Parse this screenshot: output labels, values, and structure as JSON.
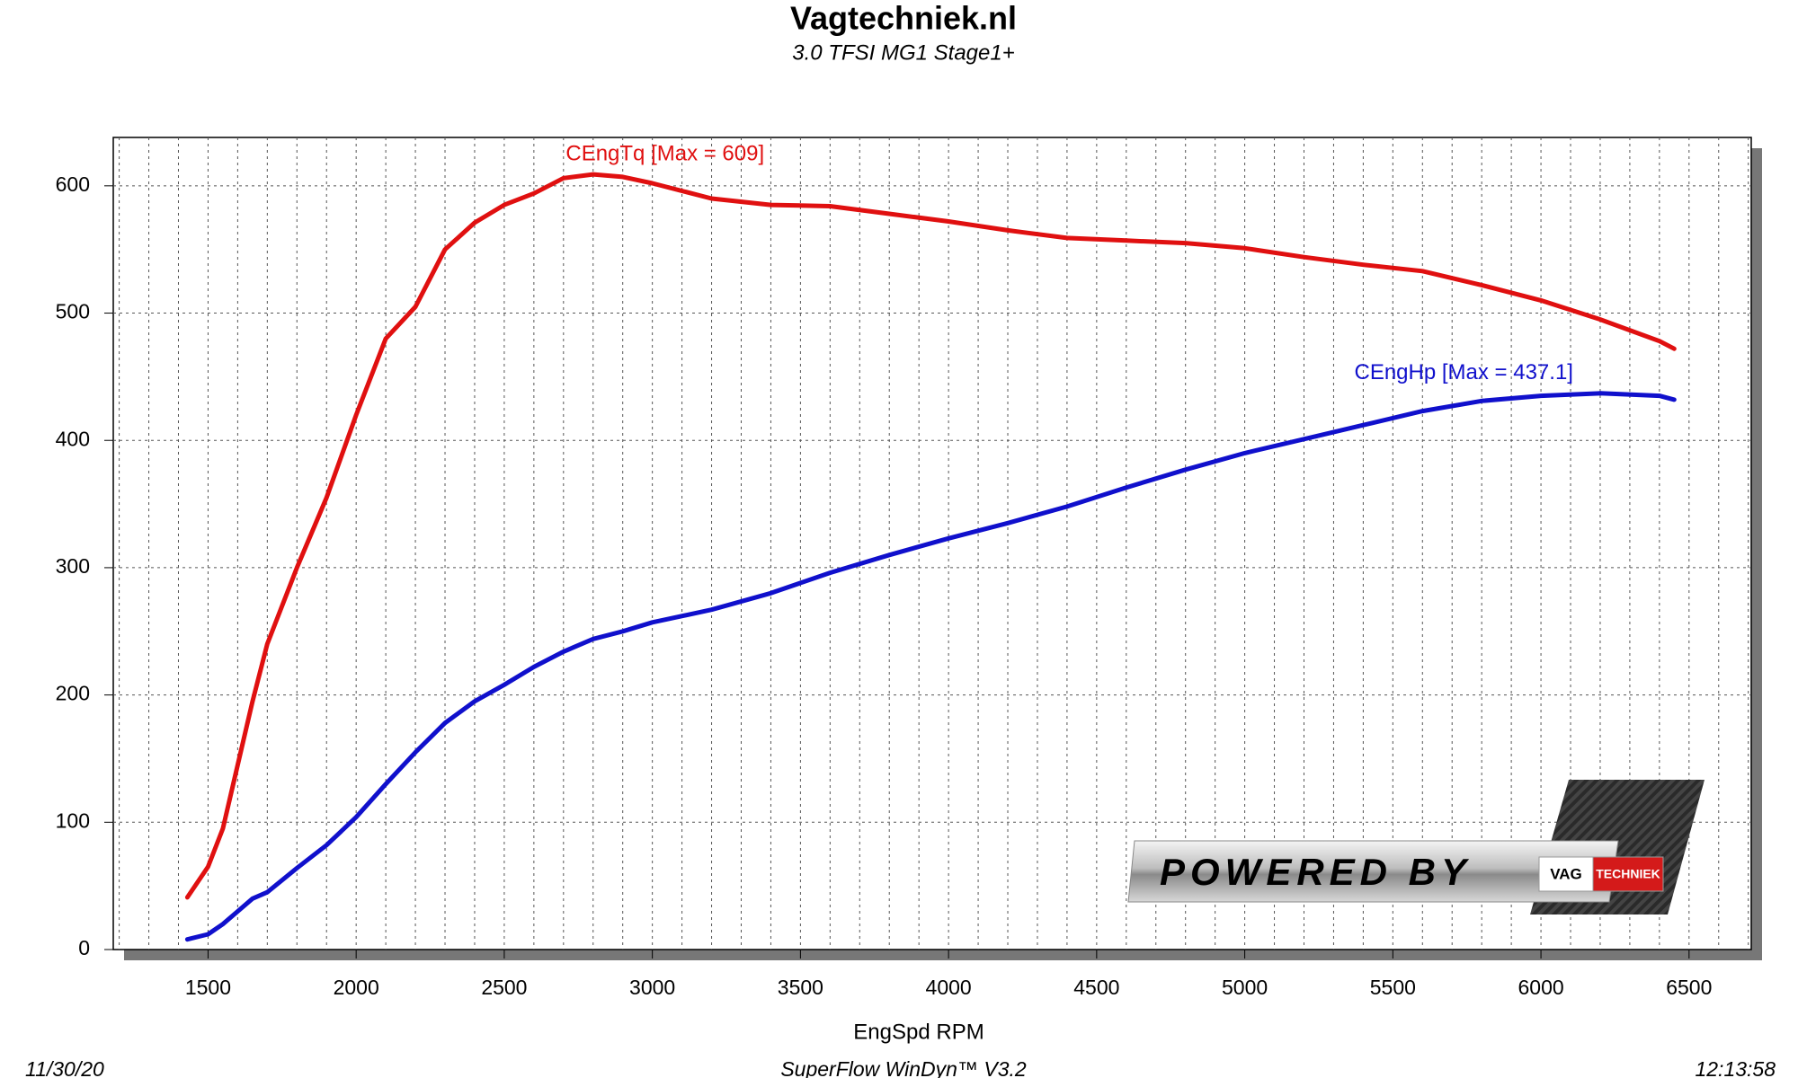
{
  "chart_data": {
    "type": "line",
    "title": "Vagtechniek.nl",
    "subtitle": "3.0 TFSI MG1 Stage1+",
    "x_label": "EngSpd RPM",
    "footer_left": "11/30/20",
    "footer_center": "SuperFlow WinDyn™  V3.2",
    "footer_right": "12:13:58",
    "logo": {
      "text": "POWERED BY",
      "brand_left": "VAG",
      "brand_right": "TECHNIEK"
    },
    "x": [
      1430,
      1500,
      1550,
      1600,
      1650,
      1700,
      1800,
      1900,
      2000,
      2100,
      2200,
      2300,
      2400,
      2500,
      2600,
      2700,
      2800,
      2900,
      3000,
      3200,
      3400,
      3600,
      3800,
      4000,
      4200,
      4400,
      4600,
      4800,
      5000,
      5200,
      5400,
      5600,
      5800,
      6000,
      6200,
      6400,
      6450
    ],
    "series": [
      {
        "name": "CEngTq",
        "annotation": "CEngTq [Max = 609]",
        "color": "#e01010",
        "values": [
          41,
          65,
          95,
          145,
          195,
          240,
          300,
          355,
          420,
          480,
          505,
          550,
          571,
          585,
          594,
          606,
          609,
          607,
          602,
          590,
          585,
          584,
          578,
          572,
          565,
          559,
          557,
          555,
          551,
          544,
          538,
          533,
          522,
          510,
          495,
          478,
          472
        ]
      },
      {
        "name": "CEngHp",
        "annotation": "CEngHp [Max = 437.1]",
        "color": "#1010cc",
        "values": [
          8,
          12,
          20,
          30,
          40,
          45,
          64,
          82,
          104,
          130,
          155,
          178,
          195,
          208,
          222,
          234,
          244,
          250,
          257,
          267,
          280,
          296,
          310,
          323,
          335,
          348,
          363,
          377,
          390,
          401,
          412,
          423,
          431,
          435,
          437,
          435,
          432
        ]
      }
    ],
    "xlim": [
      1180,
      6710
    ],
    "ylim": [
      0,
      638
    ],
    "xticks": [
      1500,
      2000,
      2500,
      3000,
      3500,
      4000,
      4500,
      5000,
      5500,
      6000,
      6500
    ],
    "yticks": [
      0,
      100,
      200,
      300,
      400,
      500,
      600
    ],
    "xminorticks": [
      1200,
      1300,
      1400,
      1600,
      1700,
      1800,
      1900,
      2100,
      2200,
      2300,
      2400,
      2600,
      2700,
      2800,
      2900,
      3100,
      3200,
      3300,
      3400,
      3600,
      3700,
      3800,
      3900,
      4100,
      4200,
      4300,
      4400,
      4600,
      4700,
      4800,
      4900,
      5100,
      5200,
      5300,
      5400,
      5600,
      5700,
      5800,
      5900,
      6100,
      6200,
      6300,
      6400,
      6600,
      6700
    ],
    "grid": true
  }
}
